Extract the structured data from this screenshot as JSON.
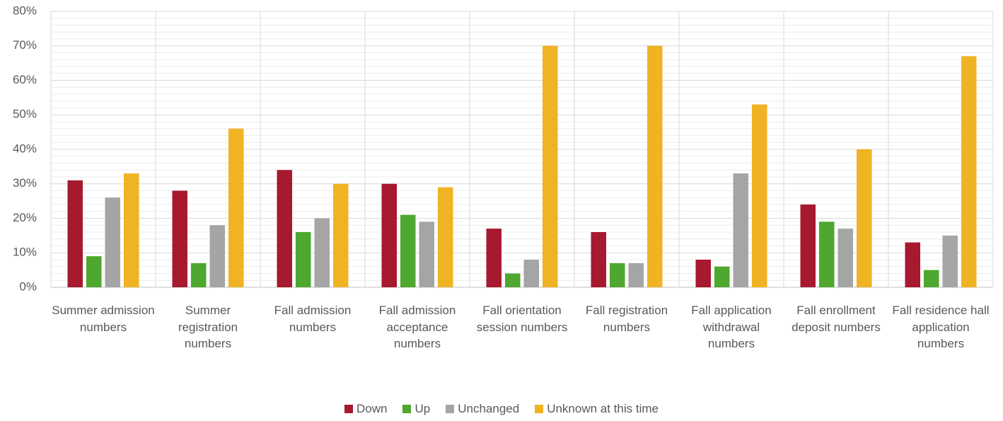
{
  "chart_data": {
    "type": "bar",
    "categories": [
      "Summer admission numbers",
      "Summer registration numbers",
      "Fall admission numbers",
      "Fall admission acceptance numbers",
      "Fall orientation session numbers",
      "Fall registration numbers",
      "Fall application withdrawal numbers",
      "Fall enrollment deposit numbers",
      "Fall residence hall application numbers"
    ],
    "series": [
      {
        "name": "Down",
        "color": "#a6192e",
        "values": [
          31,
          28,
          34,
          30,
          17,
          16,
          8,
          24,
          13
        ]
      },
      {
        "name": "Up",
        "color": "#4ea72e",
        "values": [
          9,
          7,
          16,
          21,
          4,
          7,
          6,
          19,
          5
        ]
      },
      {
        "name": "Unchanged",
        "color": "#a5a5a5",
        "values": [
          26,
          18,
          20,
          19,
          8,
          7,
          33,
          17,
          15
        ]
      },
      {
        "name": "Unknown at this time",
        "color": "#f0b323",
        "values": [
          33,
          46,
          30,
          29,
          70,
          70,
          53,
          40,
          67
        ]
      }
    ],
    "ylim": [
      0,
      80
    ],
    "yticks": [
      {
        "value": 0,
        "label": "0%"
      },
      {
        "value": 10,
        "label": "10%"
      },
      {
        "value": 20,
        "label": "20%"
      },
      {
        "value": 30,
        "label": "30%"
      },
      {
        "value": 40,
        "label": "40%"
      },
      {
        "value": 50,
        "label": "50%"
      },
      {
        "value": 60,
        "label": "60%"
      },
      {
        "value": 70,
        "label": "70%"
      },
      {
        "value": 80,
        "label": "80%"
      }
    ],
    "grid": true,
    "minor_grid": true,
    "legend": "bottom"
  }
}
